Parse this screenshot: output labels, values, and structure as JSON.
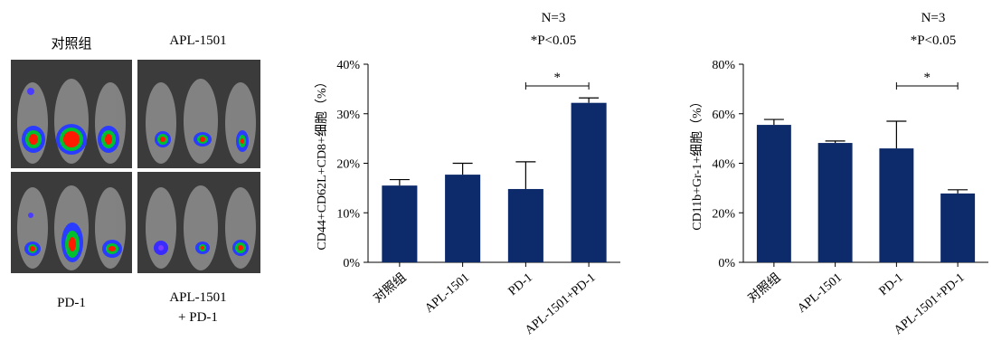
{
  "imaging": {
    "labels": {
      "control": "对照组",
      "apl": "APL-1501",
      "pd1": "PD-1",
      "combo_line1": "APL-1501",
      "combo_line2": "+ PD-1"
    }
  },
  "chart_data": [
    {
      "type": "bar",
      "title": "",
      "annotation": {
        "n": "N=3",
        "p": "*P<0.05",
        "sig": "*"
      },
      "categories": [
        "对照组",
        "APL-1501",
        "PD-1",
        "APL-1501+PD-1"
      ],
      "values": [
        15.5,
        17.7,
        14.8,
        32.2
      ],
      "errors": [
        1.2,
        2.3,
        5.5,
        1.0
      ],
      "ylabel": "CD44+CD62L+CD8+细胞（%）",
      "xlabel": "",
      "ylim": [
        0,
        40
      ],
      "yticks": [
        "0%",
        "10%",
        "20%",
        "30%",
        "40%"
      ],
      "significance_pair": [
        2,
        3
      ],
      "color": "#0d2b6b",
      "grid": false
    },
    {
      "type": "bar",
      "title": "",
      "annotation": {
        "n": "N=3",
        "p": "*P<0.05",
        "sig": "*"
      },
      "categories": [
        "对照组",
        "APL-1501",
        "PD-1",
        "APL-1501+PD-1"
      ],
      "values": [
        55.5,
        48.2,
        46.0,
        27.8
      ],
      "errors": [
        2.2,
        0.8,
        11.0,
        1.5
      ],
      "ylabel": "CD11b+Gr-1+细胞（%）",
      "xlabel": "",
      "ylim": [
        0,
        80
      ],
      "yticks": [
        "0%",
        "20%",
        "40%",
        "60%",
        "80%"
      ],
      "significance_pair": [
        2,
        3
      ],
      "color": "#0d2b6b",
      "grid": false
    }
  ]
}
